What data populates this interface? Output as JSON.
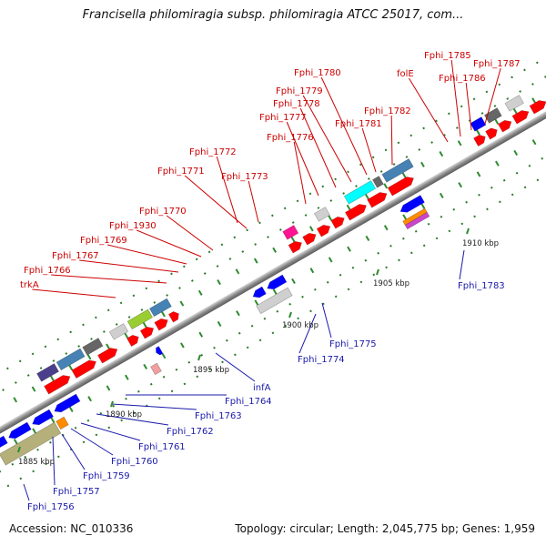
{
  "title": "Francisella philomiragia subsp. philomiragia ATCC 25017, com...",
  "footer": {
    "accession": "Accession: NC_010336",
    "stats": "Topology: circular; Length: 2,045,775 bp; Genes: 1,959"
  },
  "colors": {
    "forward_gene": "#ff0000",
    "reverse_gene": "#0000ee",
    "label_forward": "#cc0000",
    "label_reverse": "#1a1aaa",
    "tick": "#2e8b2e"
  },
  "kbp_labels": [
    "1885 kbp",
    "1890 kbp",
    "1895 kbp",
    "1900 kbp",
    "1905 kbp",
    "1910 kbp"
  ],
  "gene_labels_forward": [
    "trkA",
    "Fphi_1766",
    "Fphi_1767",
    "Fphi_1769",
    "Fphi_1930",
    "Fphi_1770",
    "Fphi_1771",
    "Fphi_1772",
    "Fphi_1773",
    "Fphi_1776",
    "Fphi_1777",
    "Fphi_1778",
    "Fphi_1779",
    "Fphi_1780",
    "Fphi_1781",
    "Fphi_1782",
    "folE",
    "Fphi_1785",
    "Fphi_1786",
    "Fphi_1787"
  ],
  "gene_labels_reverse": [
    "Fphi_1756",
    "Fphi_1757",
    "Fphi_1759",
    "Fphi_1760",
    "Fphi_1761",
    "Fphi_1762",
    "Fphi_1763",
    "Fphi_1764",
    "infA",
    "Fphi_1774",
    "Fphi_1775",
    "Fphi_1783"
  ]
}
